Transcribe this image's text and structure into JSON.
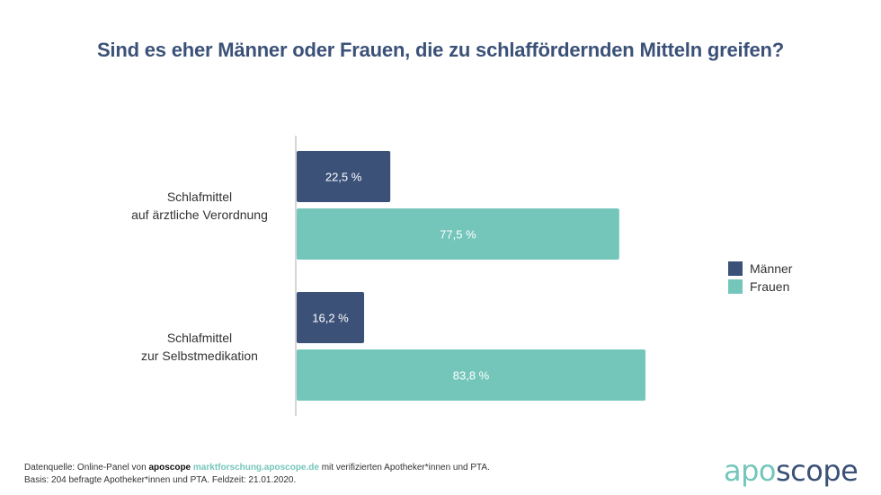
{
  "title": "Sind es eher Männer oder Frauen, die zu schlaffördernden Mitteln greifen?",
  "colors": {
    "maenner": "#3b5178",
    "frauen": "#74c6bb",
    "axis": "#c8c8c8",
    "title": "#3b5178"
  },
  "chart_data": {
    "type": "bar",
    "orientation": "horizontal",
    "title": "Sind es eher Männer oder Frauen, die zu schlaffördernden Mitteln greifen?",
    "categories": [
      [
        "Schlafmittel",
        "auf ärztliche Verordnung"
      ],
      [
        "Schlafmittel",
        "zur Selbstmedikation"
      ]
    ],
    "series": [
      {
        "name": "Männer",
        "color": "#3b5178",
        "values": [
          22.5,
          16.2
        ],
        "labels": [
          "22,5 %",
          "16,2 %"
        ]
      },
      {
        "name": "Frauen",
        "color": "#74c6bb",
        "values": [
          77.5,
          83.8
        ],
        "labels": [
          "77,5 %",
          "83,8 %"
        ]
      }
    ],
    "xlim": [
      0,
      100
    ],
    "unit": "%",
    "grid": false,
    "legend": "right"
  },
  "legend": [
    {
      "label": "Männer",
      "color": "#3b5178"
    },
    {
      "label": "Frauen",
      "color": "#74c6bb"
    }
  ],
  "footer": {
    "line1_prefix": "Datenquelle: Online-Panel von ",
    "line1_brand": "aposcope",
    "line1_link": "marktforschung.aposcope.de",
    "line1_suffix": " mit verifizierten Apotheker*innen und PTA.",
    "line2": "Basis: 204 befragte Apotheker*innen und PTA. Feldzeit: 21.01.2020."
  },
  "logo": {
    "part1": "apo",
    "part2": "scope"
  }
}
